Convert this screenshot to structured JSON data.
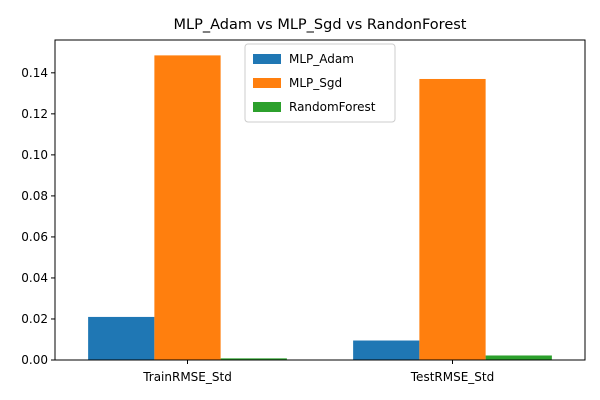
{
  "chart_data": {
    "type": "bar",
    "title": "MLP_Adam vs MLP_Sgd vs RandonForest",
    "xlabel": "",
    "ylabel": "",
    "categories": [
      "TrainRMSE_Std",
      "TestRMSE_Std"
    ],
    "series": [
      {
        "name": "MLP_Adam",
        "values": [
          0.021,
          0.0095
        ],
        "color": "#1f77b4"
      },
      {
        "name": "MLP_Sgd",
        "values": [
          0.1485,
          0.137
        ],
        "color": "#ff7f0e"
      },
      {
        "name": "RandomForest",
        "values": [
          0.0008,
          0.0022
        ],
        "color": "#2ca02c"
      }
    ],
    "ylim": [
      0,
      0.156
    ],
    "yticks": [
      0.0,
      0.02,
      0.04,
      0.06,
      0.08,
      0.1,
      0.12,
      0.14
    ],
    "ytick_labels": [
      "0.00",
      "0.02",
      "0.04",
      "0.06",
      "0.08",
      "0.10",
      "0.12",
      "0.14"
    ],
    "grid": false,
    "legend_position": "top-center"
  }
}
